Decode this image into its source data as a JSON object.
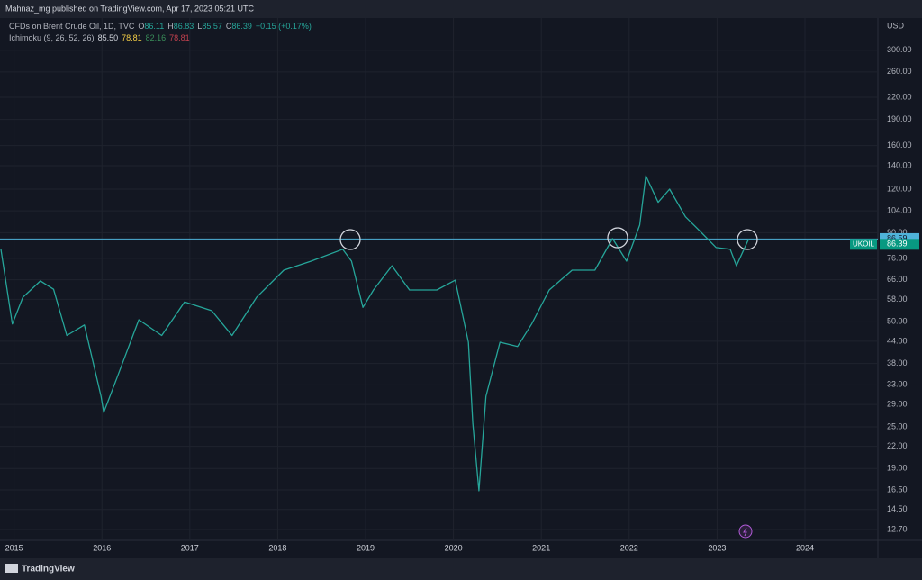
{
  "publisher": "Mahnaz_mg published on TradingView.com, Apr 17, 2023 05:21 UTC",
  "footer": "TradingView",
  "chart_data": {
    "type": "line",
    "legend": {
      "symbol": "CFDs on Brent Crude Oil, 1D, TVC",
      "o_label": "O",
      "o": 86.11,
      "h_label": "H",
      "h": 86.83,
      "l_label": "L",
      "l": 85.57,
      "c_label": "C",
      "c": 86.39,
      "change": "+0.15 (+0.17%)",
      "indicator": "Ichimoku (9, 26, 52, 26)",
      "ind_values": [
        85.5,
        78.81,
        82.16,
        78.81
      ],
      "ind_value_labels": [
        "85.50",
        "78.81",
        "82.16",
        "78.81"
      ]
    },
    "currency": "USD",
    "symbol": "UKOIL",
    "price_line": 86.39,
    "ask": 86.59,
    "log_scale": true,
    "grid": true,
    "series": [
      {
        "color": "#26a69a",
        "x": [
          2014.85,
          2014.98,
          2015.1,
          2015.3,
          2015.45,
          2015.6,
          2015.8,
          2015.99,
          2016.02,
          2016.17,
          2016.42,
          2016.68,
          2016.94,
          2017.25,
          2017.48,
          2017.76,
          2018.07,
          2018.38,
          2018.74,
          2018.84,
          2018.97,
          2019.09,
          2019.3,
          2019.5,
          2019.81,
          2020.02,
          2020.17,
          2020.22,
          2020.29,
          2020.37,
          2020.53,
          2020.73,
          2020.89,
          2021.09,
          2021.35,
          2021.61,
          2021.81,
          2021.97,
          2022.12,
          2022.19,
          2022.33,
          2022.46,
          2022.64,
          2022.79,
          2022.99,
          2023.15,
          2023.22,
          2023.36
        ],
        "values": [
          80.7,
          49.3,
          58.8,
          65.5,
          62,
          45.7,
          49,
          30.6,
          27.5,
          34.5,
          50.7,
          45.7,
          57,
          53.8,
          45.7,
          58.8,
          70.3,
          74.6,
          80.7,
          74.6,
          55,
          61.7,
          72.4,
          61.7,
          61.7,
          65.8,
          43.7,
          25.6,
          16.4,
          30.6,
          43.7,
          42.5,
          49.3,
          61.7,
          70.3,
          70.3,
          86.6,
          74.6,
          94.7,
          131,
          110,
          120,
          100,
          91.8,
          81.6,
          80.7,
          72.4,
          86.39
        ]
      }
    ],
    "xlim": [
      2014.84,
      2024.83
    ],
    "xticks": [
      2015,
      2016,
      2017,
      2018,
      2019,
      2020,
      2021,
      2022,
      2023,
      2024
    ],
    "ylim": [
      11.83,
      371
    ],
    "yticks": [
      {
        "value": 300,
        "label": "300.00"
      },
      {
        "value": 260,
        "label": "260.00"
      },
      {
        "value": 220,
        "label": "220.00"
      },
      {
        "value": 190,
        "label": "190.00"
      },
      {
        "value": 160,
        "label": "160.00"
      },
      {
        "value": 140,
        "label": "140.00"
      },
      {
        "value": 120,
        "label": "120.00"
      },
      {
        "value": 104,
        "label": "104.00"
      },
      {
        "value": 90,
        "label": "90.00"
      },
      {
        "value": 76,
        "label": "76.00"
      },
      {
        "value": 66,
        "label": "66.00"
      },
      {
        "value": 58,
        "label": "58.00"
      },
      {
        "value": 50,
        "label": "50.00"
      },
      {
        "value": 44,
        "label": "44.00"
      },
      {
        "value": 38,
        "label": "38.00"
      },
      {
        "value": 33,
        "label": "33.00"
      },
      {
        "value": 29,
        "label": "29.00"
      },
      {
        "value": 25,
        "label": "25.00"
      },
      {
        "value": 22,
        "label": "22.00"
      },
      {
        "value": 19,
        "label": "19.00"
      },
      {
        "value": 16.5,
        "label": "16.50"
      },
      {
        "value": 14.5,
        "label": "14.50"
      },
      {
        "value": 12.7,
        "label": "12.70"
      }
    ]
  }
}
